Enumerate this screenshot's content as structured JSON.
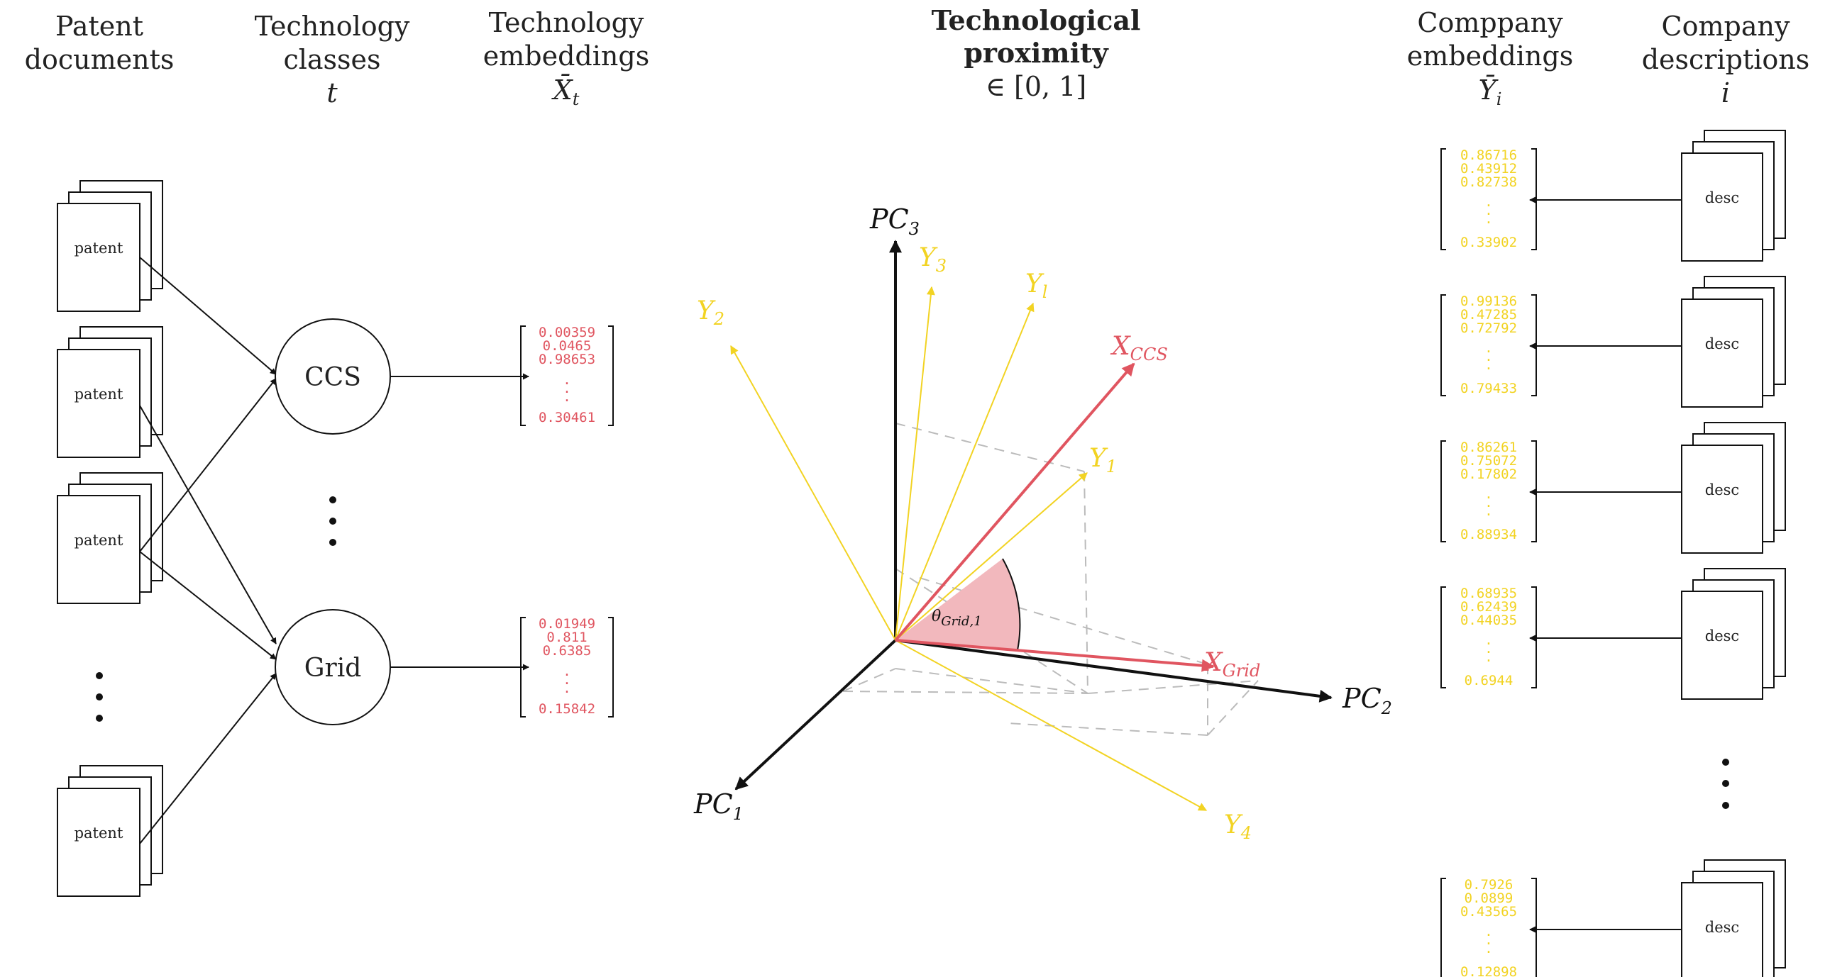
{
  "headers": {
    "patent_docs": [
      "Patent",
      "documents"
    ],
    "tech_classes": [
      "Technology",
      "classes"
    ],
    "tech_classes_symbol": "t",
    "tech_embeddings": [
      "Technology",
      "embeddings"
    ],
    "tech_embeddings_symbol": "X̄",
    "tech_embeddings_sub": "t",
    "proximity": [
      "Technological",
      "proximity"
    ],
    "proximity_range": "∈ [0, 1]",
    "company_embeddings": [
      "Comppany",
      "embeddings"
    ],
    "company_embeddings_symbol": "Ȳ",
    "company_embeddings_sub": "i",
    "company_desc": [
      "Company",
      "descriptions"
    ],
    "company_desc_symbol": "i"
  },
  "patent_label": "patent",
  "desc_label": "desc",
  "tech_nodes": [
    "CCS",
    "Grid"
  ],
  "tech_vectors": [
    [
      "0.00359",
      "0.0465",
      "0.98653",
      "0.30461"
    ],
    [
      "0.01949",
      "0.811",
      "0.6385",
      "0.15842"
    ]
  ],
  "company_vectors": [
    [
      "0.86716",
      "0.43912",
      "0.82738",
      "0.33902"
    ],
    [
      "0.99136",
      "0.47285",
      "0.72792",
      "0.79433"
    ],
    [
      "0.86261",
      "0.75072",
      "0.17802",
      "0.88934"
    ],
    [
      "0.68935",
      "0.62439",
      "0.44035",
      "0.6944"
    ],
    [
      "0.7926",
      "0.0899",
      "0.43565",
      "0.12898"
    ]
  ],
  "axes": {
    "pc1": {
      "base": "PC",
      "sub": "1"
    },
    "pc2": {
      "base": "PC",
      "sub": "2"
    },
    "pc3": {
      "base": "PC",
      "sub": "3"
    }
  },
  "company_vector_labels": [
    {
      "base": "Y",
      "sub": "1"
    },
    {
      "base": "Y",
      "sub": "2"
    },
    {
      "base": "Y",
      "sub": "3"
    },
    {
      "base": "Y",
      "sub": "4"
    },
    {
      "base": "Y",
      "sub": "l"
    }
  ],
  "tech_vector_labels": [
    {
      "base": "X",
      "sub": "CCS"
    },
    {
      "base": "X",
      "sub": "Grid"
    }
  ],
  "angle_label": {
    "base": "θ",
    "sub": "Grid,1"
  },
  "colors": {
    "technology": "#e05560",
    "company": "#f2d323",
    "angle_fill": "#f2b8bd",
    "guide": "#bbbbbb"
  }
}
